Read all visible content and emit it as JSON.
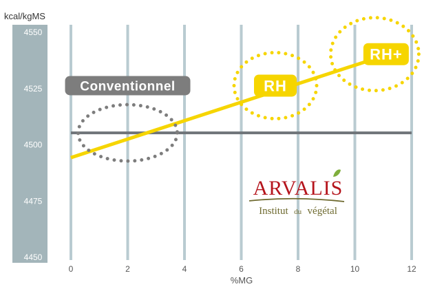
{
  "chart_data": {
    "type": "line",
    "title": "",
    "ylabel": "kcal/kgMS",
    "xlabel": "%MG",
    "xlim": [
      0,
      12
    ],
    "ylim": [
      4450,
      4550
    ],
    "x_ticks": [
      0,
      2,
      4,
      6,
      8,
      10,
      12
    ],
    "y_ticks": [
      4450,
      4475,
      4500,
      4525,
      4550
    ],
    "grid": "vertical",
    "series": [
      {
        "x": [
          0,
          12
        ],
        "y": [
          4505,
          4505
        ],
        "color": "#6f7479"
      },
      {
        "x": [
          0,
          11.2
        ],
        "y": [
          4494,
          4540
        ],
        "color": "#f6d500"
      }
    ],
    "annotations": [
      {
        "label": "Conventionnel",
        "style": "grey",
        "ellipse_center": [
          2,
          4505
        ],
        "label_anchor": [
          2,
          4526
        ]
      },
      {
        "label": "RH",
        "style": "yellow",
        "ellipse_center": [
          7.2,
          4526
        ],
        "label_anchor": [
          7.2,
          4526
        ]
      },
      {
        "label": "RH+",
        "style": "yellow",
        "ellipse_center": [
          10.7,
          4540
        ],
        "label_anchor": [
          11.1,
          4540
        ]
      }
    ]
  },
  "logo": {
    "name": "ARVALIS",
    "tagline_a": "Institut",
    "tagline_b": "du",
    "tagline_c": "végétal"
  },
  "colors": {
    "axis_band": "#a3b5ba",
    "grid": "#b9cbd1",
    "reference_line": "#6f7479",
    "trend_line": "#f6d500",
    "label_grey": "#7d7d7d",
    "logo_red": "#b5141c",
    "logo_olive": "#6e6a2f",
    "leaf_green": "#7fae3c"
  }
}
